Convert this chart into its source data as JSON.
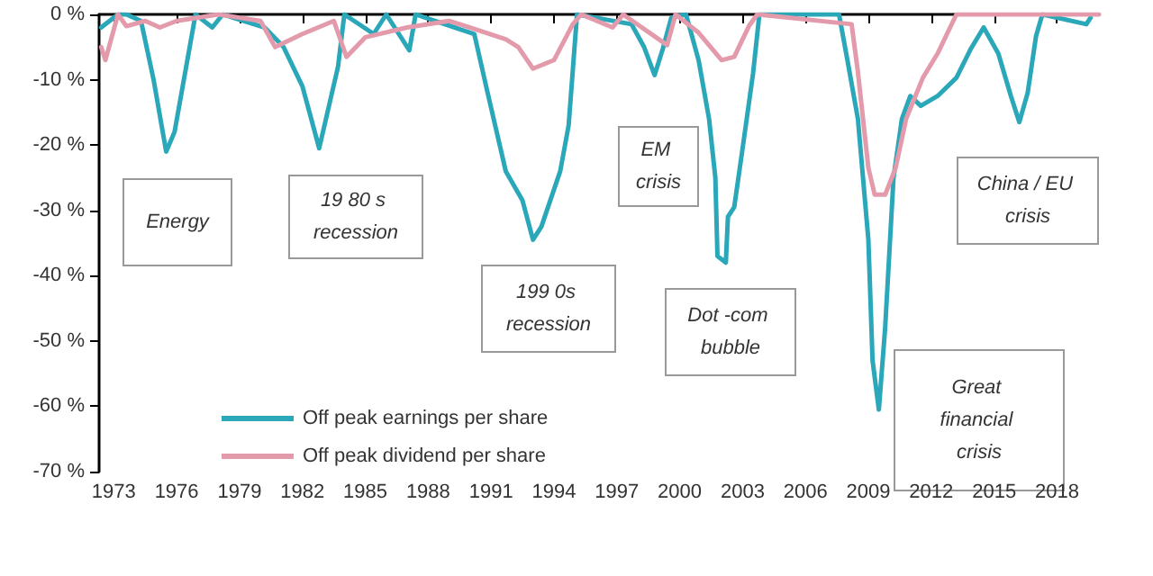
{
  "chart_data": {
    "type": "line",
    "xlim": [
      1972.3,
      2020
    ],
    "xticks": [
      1973,
      1976,
      1979,
      1982,
      1985,
      1988,
      1991,
      1994,
      1997,
      2000,
      2003,
      2006,
      2009,
      2012,
      2015,
      2018
    ],
    "ylim": [
      -70,
      0
    ],
    "yticks": [
      {
        "value": 0,
        "label": "0 %"
      },
      {
        "value": -10,
        "label": "-10 %"
      },
      {
        "value": -20,
        "label": "-20 %"
      },
      {
        "value": -30,
        "label": "-30 %"
      },
      {
        "value": -40,
        "label": "-40 %"
      },
      {
        "value": -50,
        "label": "-50 %"
      },
      {
        "value": -60,
        "label": "-60 %"
      },
      {
        "value": -70,
        "label": "-70 %"
      }
    ],
    "grid": false,
    "legend": "bottom left",
    "marker": "none",
    "line_style": "solid",
    "series": [
      {
        "name": "Off peak earnings per share",
        "color": "#2aa7b8",
        "x": [
          1972.4,
          1973.2,
          1973.6,
          1974.3,
          1974.9,
          1975.5,
          1975.9,
          1976.9,
          1977.7,
          1978.2,
          1980.2,
          1981.1,
          1982,
          1982.8,
          1983.7,
          1984,
          1985.4,
          1986,
          1987.1,
          1987.4,
          1990.2,
          1990.8,
          1991.7,
          1992.5,
          1993,
          1993.4,
          1994.3,
          1994.7,
          1995.1,
          1997.7,
          1998.3,
          1998.8,
          1999.2,
          1999.6,
          2000.3,
          2000.9,
          2001.4,
          2001.7,
          2001.8,
          2002.2,
          2002.3,
          2002.6,
          2003,
          2003.5,
          2003.8,
          2007.6,
          2008,
          2008.5,
          2009,
          2009.2,
          2009.5,
          2009.8,
          2010.2,
          2010.6,
          2011,
          2011.5,
          2012.3,
          2013.2,
          2013.9,
          2014.5,
          2015.2,
          2015.8,
          2016.2,
          2016.6,
          2017,
          2017.3,
          2019.4,
          2019.6
        ],
        "values": [
          -2,
          0,
          0,
          -1,
          -10,
          -21,
          -18,
          0,
          -2,
          0,
          -2,
          -5,
          -11,
          -20.5,
          -8,
          0,
          -3,
          0,
          -5.5,
          0,
          -3,
          -11.5,
          -24,
          -28.5,
          -34.5,
          -32.5,
          -24,
          -17,
          0,
          -1.5,
          -5,
          -9.3,
          -5.2,
          -0.5,
          0,
          -7,
          -16,
          -25,
          -37,
          -38,
          -31,
          -29.5,
          -20.5,
          -9,
          0,
          0,
          -7,
          -16,
          -34.5,
          -53,
          -60.5,
          -48,
          -25,
          -16,
          -12.5,
          -14,
          -12.5,
          -9.7,
          -5.2,
          -2,
          -6,
          -12.5,
          -16.5,
          -12,
          -3.3,
          0,
          -1.5,
          -0.5
        ]
      },
      {
        "name": "Off peak dividend per share",
        "color": "#e39aaa",
        "x": [
          1972.4,
          1972.6,
          1973.2,
          1973.6,
          1974.5,
          1975.2,
          1976,
          1978,
          1980,
          1980.7,
          1982,
          1983.5,
          1984.1,
          1985,
          1987,
          1989,
          1990,
          1991.7,
          1992.3,
          1993,
          1994,
          1994.9,
          1995.3,
          1996.8,
          1997.3,
          1999.4,
          1999.8,
          2000.9,
          2002,
          2002.6,
          2003.3,
          2003.7,
          2008.2,
          2008.5,
          2009,
          2009.3,
          2009.8,
          2010.3,
          2010.8,
          2011.6,
          2012.3,
          2013.2,
          2020
        ],
        "values": [
          -5,
          -7,
          0,
          -1.8,
          -1,
          -2,
          -1,
          0,
          -1,
          -5,
          -3,
          -1,
          -6.5,
          -3.5,
          -2,
          -1,
          -2,
          -3.8,
          -5,
          -8.3,
          -7,
          -1.5,
          0,
          -2,
          0,
          -4.7,
          0,
          -2.8,
          -7,
          -6.5,
          -1.8,
          0,
          -1.5,
          -8.8,
          -23.5,
          -27.6,
          -27.6,
          -23.5,
          -16,
          -9.7,
          -6,
          0,
          0
        ]
      }
    ],
    "annotations": [
      "Energy",
      "19 80 s recession",
      "199 0s recession",
      "EM crisis",
      "Dot -com bubble",
      "Great financial crisis",
      "China / EU crisis"
    ]
  }
}
